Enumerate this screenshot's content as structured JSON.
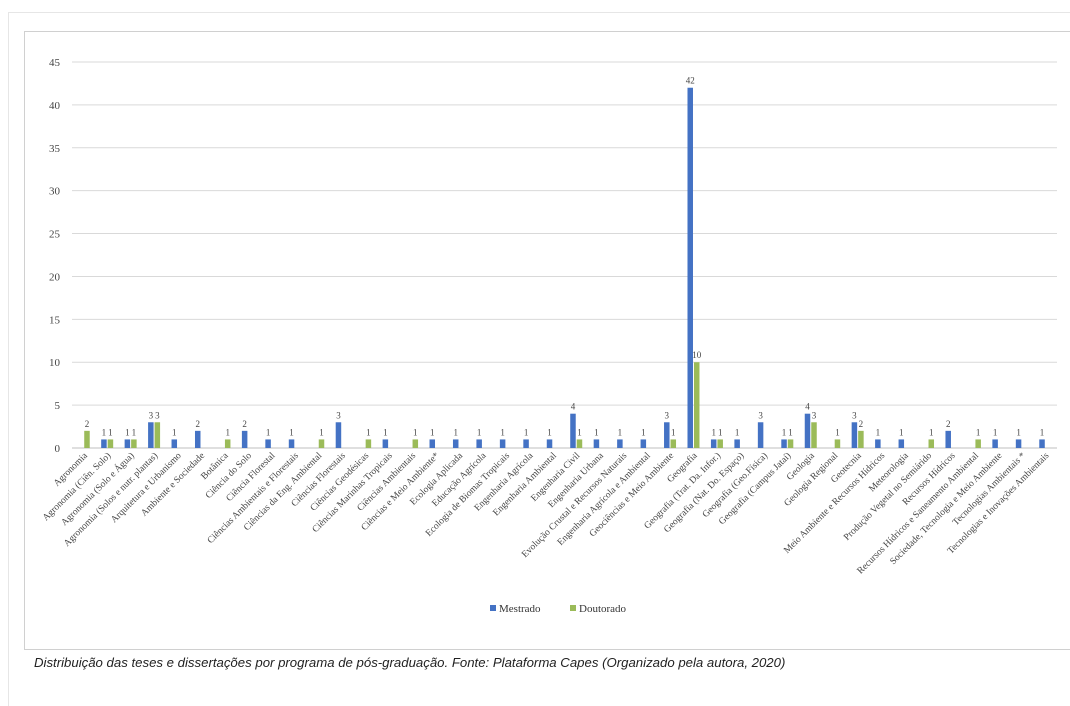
{
  "caption": "Distribuição das teses e dissertações por programa de pós-graduação. Fonte: Plataforma Capes (Organizado pela autora, 2020)",
  "chart_data": {
    "type": "bar",
    "title": "",
    "xlabel": "",
    "ylabel": "",
    "ylim": [
      0,
      45
    ],
    "yticks": [
      0,
      5,
      10,
      15,
      20,
      25,
      30,
      35,
      40,
      45
    ],
    "grid": true,
    "legend_position": "bottom",
    "categories": [
      "Agronomia",
      "Agronomia (Ciên. Solo)",
      "Agronomia (Solo e Água)",
      "Agronomia (Solos e nutr. plantas)",
      "Arquitetura e Urbanismo",
      "Ambiente e Sociedade",
      "Botânica",
      "Ciência do Solo",
      "Ciência Florestal",
      "Ciências Ambientais e Florestais",
      "Ciências da Eng. Ambiental",
      "Ciências Florestais",
      "Ciências Geodésicas",
      "Ciências Marinhas Tropicais",
      "Ciências Ambientais",
      "Ciências e Meio Ambiente*",
      "Ecologia Aplicada",
      "Educação Agrícola",
      "Ecologia de Biomas Tropicais",
      "Engenharia Agrícola",
      "Engenharia Ambiental",
      "Engenharia Civil",
      "Engenharia Urbana",
      "Evolução Crustal e Recursos Naturais",
      "Engenharia Agrícola e Ambiental",
      "Geociências e Meio Ambiente",
      "Geografia",
      "Geografia (Trat. Da. Infor.)",
      "Geografia (Nat. Do. Espaço)",
      "Geografia (Geo.Física)",
      "Geografia (Campus Jataí)",
      "Geologia",
      "Geologia Regional",
      "Geotecnia",
      "Meio Ambiente e Recursos Hídricos",
      "Meteorologia",
      "Produção Vegetal no Semiárido",
      "Recursos Hídricos",
      "Recursos Hídricos e Saneamento Ambiental",
      "Sociedade, Tecnologia e Meio Ambiente",
      "Tecnologias Ambientais *",
      "Tecnologias e Inovações Ambientais"
    ],
    "series": [
      {
        "name": "Mestrado",
        "color": "#4472c4",
        "values": [
          0,
          1,
          1,
          3,
          1,
          2,
          0,
          2,
          1,
          1,
          0,
          3,
          0,
          1,
          0,
          1,
          1,
          1,
          1,
          1,
          1,
          4,
          1,
          1,
          1,
          3,
          42,
          1,
          1,
          3,
          1,
          4,
          0,
          3,
          1,
          1,
          0,
          2,
          0,
          1,
          1,
          1
        ]
      },
      {
        "name": "Doutorado",
        "color": "#9bbb59",
        "values": [
          2,
          1,
          1,
          3,
          0,
          0,
          1,
          0,
          0,
          0,
          1,
          0,
          1,
          0,
          1,
          0,
          0,
          0,
          0,
          0,
          0,
          1,
          0,
          0,
          0,
          1,
          10,
          1,
          0,
          0,
          1,
          3,
          1,
          2,
          0,
          0,
          1,
          0,
          1,
          0,
          0,
          0
        ]
      }
    ]
  }
}
